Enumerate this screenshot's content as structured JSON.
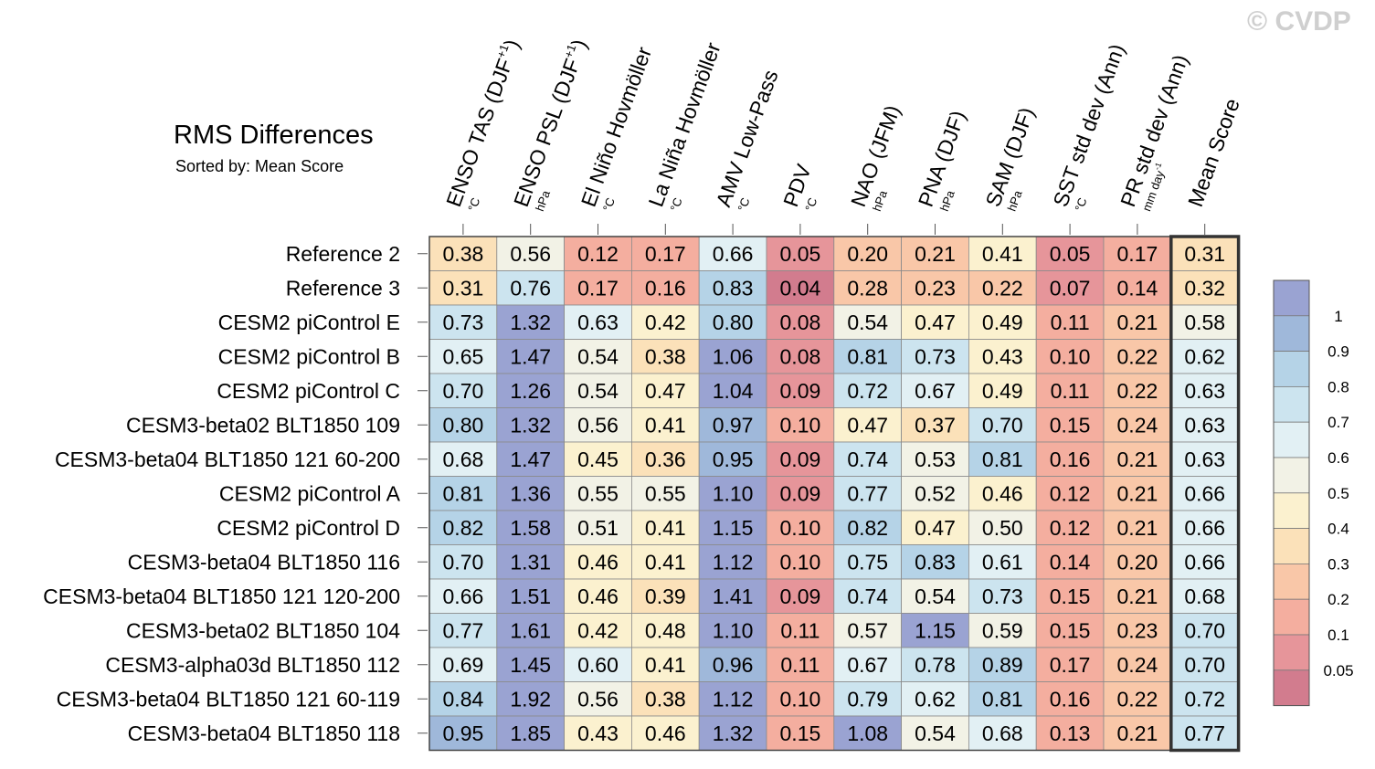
{
  "chart_data": {
    "type": "heatmap",
    "title": "RMS Differences",
    "subtitle": "Sorted by: Mean Score",
    "watermark": "© CVDP",
    "columns": [
      {
        "label": "ENSO TAS (DJF+1)",
        "unit": "°C"
      },
      {
        "label": "ENSO PSL (DJF+1)",
        "unit": "hPa"
      },
      {
        "label": "El Niño Hovmöller",
        "unit": "°C"
      },
      {
        "label": "La Niña Hovmöller",
        "unit": "°C"
      },
      {
        "label": "AMV Low-Pass",
        "unit": "°C"
      },
      {
        "label": "PDV",
        "unit": "°C"
      },
      {
        "label": "NAO (JFM)",
        "unit": "hPa"
      },
      {
        "label": "PNA (DJF)",
        "unit": "hPa"
      },
      {
        "label": "SAM (DJF)",
        "unit": "hPa"
      },
      {
        "label": "SST std dev (Ann)",
        "unit": "°C"
      },
      {
        "label": "PR std dev (Ann)",
        "unit": "mm day-1"
      },
      {
        "label": "Mean Score",
        "unit": ""
      }
    ],
    "rows": [
      "Reference 2",
      "Reference 3",
      "CESM2 piControl E",
      "CESM2 piControl B",
      "CESM2 piControl C",
      "CESM3-beta02 BLT1850 109",
      "CESM3-beta04 BLT1850 121 60-200",
      "CESM2 piControl A",
      "CESM2 piControl D",
      "CESM3-beta04 BLT1850 116",
      "CESM3-beta04 BLT1850 121 120-200",
      "CESM3-beta02 BLT1850 104",
      "CESM3-alpha03d BLT1850 112",
      "CESM3-beta04 BLT1850 121 60-119",
      "CESM3-beta04 BLT1850 118"
    ],
    "values": [
      [
        0.38,
        0.56,
        0.12,
        0.17,
        0.66,
        0.05,
        0.2,
        0.21,
        0.41,
        0.05,
        0.17,
        0.31
      ],
      [
        0.31,
        0.76,
        0.17,
        0.16,
        0.83,
        0.04,
        0.28,
        0.23,
        0.22,
        0.07,
        0.14,
        0.32
      ],
      [
        0.73,
        1.32,
        0.63,
        0.42,
        0.8,
        0.08,
        0.54,
        0.47,
        0.49,
        0.11,
        0.21,
        0.58
      ],
      [
        0.65,
        1.47,
        0.54,
        0.38,
        1.06,
        0.08,
        0.81,
        0.73,
        0.43,
        0.1,
        0.22,
        0.62
      ],
      [
        0.7,
        1.26,
        0.54,
        0.47,
        1.04,
        0.09,
        0.72,
        0.67,
        0.49,
        0.11,
        0.22,
        0.63
      ],
      [
        0.8,
        1.32,
        0.56,
        0.41,
        0.97,
        0.1,
        0.47,
        0.37,
        0.7,
        0.15,
        0.24,
        0.63
      ],
      [
        0.68,
        1.47,
        0.45,
        0.36,
        0.95,
        0.09,
        0.74,
        0.53,
        0.81,
        0.16,
        0.21,
        0.63
      ],
      [
        0.81,
        1.36,
        0.55,
        0.55,
        1.1,
        0.09,
        0.77,
        0.52,
        0.46,
        0.12,
        0.21,
        0.66
      ],
      [
        0.82,
        1.58,
        0.51,
        0.41,
        1.15,
        0.1,
        0.82,
        0.47,
        0.5,
        0.12,
        0.21,
        0.66
      ],
      [
        0.7,
        1.31,
        0.46,
        0.41,
        1.12,
        0.1,
        0.75,
        0.83,
        0.61,
        0.14,
        0.2,
        0.66
      ],
      [
        0.66,
        1.51,
        0.46,
        0.39,
        1.41,
        0.09,
        0.74,
        0.54,
        0.73,
        0.15,
        0.21,
        0.68
      ],
      [
        0.77,
        1.61,
        0.42,
        0.48,
        1.1,
        0.11,
        0.57,
        1.15,
        0.59,
        0.15,
        0.23,
        0.7
      ],
      [
        0.69,
        1.45,
        0.6,
        0.41,
        0.96,
        0.11,
        0.67,
        0.78,
        0.89,
        0.17,
        0.24,
        0.7
      ],
      [
        0.84,
        1.92,
        0.56,
        0.38,
        1.12,
        0.1,
        0.79,
        0.62,
        0.81,
        0.16,
        0.22,
        0.72
      ],
      [
        0.95,
        1.85,
        0.43,
        0.46,
        1.32,
        0.15,
        1.08,
        0.54,
        0.68,
        0.13,
        0.21,
        0.77
      ]
    ],
    "colorbar": {
      "levels": [
        0.05,
        0.1,
        0.2,
        0.3,
        0.4,
        0.5,
        0.6,
        0.7,
        0.8,
        0.9,
        1
      ],
      "labels": [
        "0.05",
        "0.1",
        "0.2",
        "0.3",
        "0.4",
        "0.5",
        "0.6",
        "0.7",
        "0.8",
        "0.9",
        "1"
      ],
      "colors": [
        "#d27c8e",
        "#e6959a",
        "#f4ae9f",
        "#f9c7a8",
        "#fbe1b9",
        "#fbf1cf",
        "#f2f2e6",
        "#e2f0f4",
        "#cce4ef",
        "#b5d3e7",
        "#9fb8da",
        "#9aa3d2"
      ]
    }
  }
}
